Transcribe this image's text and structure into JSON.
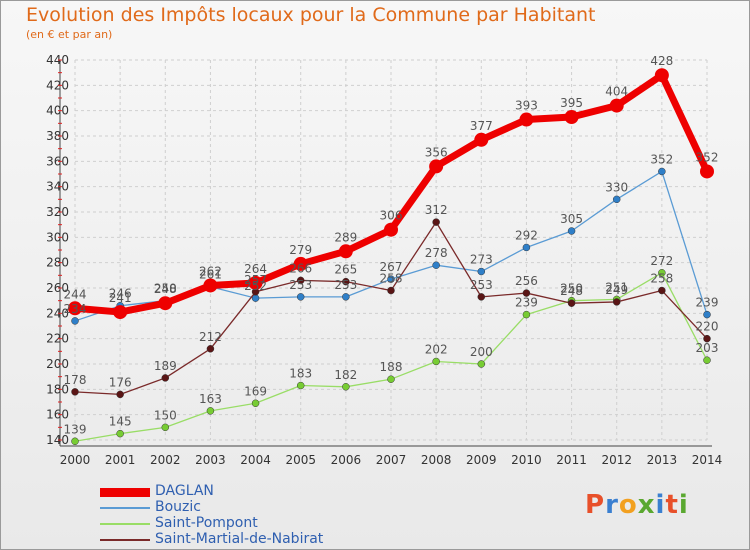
{
  "title": "Evolution des Impôts locaux pour la Commune par Habitant",
  "subtitle": "(en € et par an)",
  "logo": {
    "letters": [
      "P",
      "r",
      "o",
      "x",
      "i",
      "t",
      "i"
    ],
    "colors": [
      "#e8502a",
      "#3a7fd0",
      "#f2a020",
      "#5aa830",
      "#3a7fd0",
      "#e8502a",
      "#5aa830"
    ]
  },
  "chart_data": {
    "type": "line",
    "x": [
      2000,
      2001,
      2002,
      2003,
      2004,
      2005,
      2006,
      2007,
      2008,
      2009,
      2010,
      2011,
      2012,
      2013,
      2014
    ],
    "ylim": [
      140,
      440
    ],
    "yticks": [
      140,
      160,
      180,
      200,
      220,
      240,
      260,
      280,
      300,
      320,
      340,
      360,
      380,
      400,
      420,
      440
    ],
    "grid": true,
    "legend": "bottom-left",
    "series": [
      {
        "name": "Bouzic",
        "color": "#5a9bd4",
        "point_color": "#2f7fc8",
        "values": [
          234,
          246,
          250,
          261,
          252,
          253,
          253,
          267,
          278,
          273,
          292,
          305,
          330,
          352,
          239
        ]
      },
      {
        "name": "Saint-Pompont",
        "color": "#99dd66",
        "point_color": "#77cc33",
        "values": [
          139,
          145,
          150,
          163,
          169,
          183,
          182,
          188,
          202,
          200,
          239,
          250,
          251,
          272,
          203
        ]
      },
      {
        "name": "Saint-Martial-de-Nabirat",
        "color": "#7a2a2a",
        "point_color": "#5a1515",
        "values": [
          178,
          176,
          189,
          212,
          257,
          266,
          265,
          258,
          312,
          253,
          256,
          248,
          249,
          258,
          220
        ]
      },
      {
        "name": "DAGLAN",
        "color": "#ee0000",
        "point_color": "#ee0000",
        "values": [
          244,
          241,
          248,
          262,
          264,
          279,
          289,
          306,
          356,
          377,
          393,
          395,
          404,
          428,
          352
        ]
      }
    ]
  }
}
